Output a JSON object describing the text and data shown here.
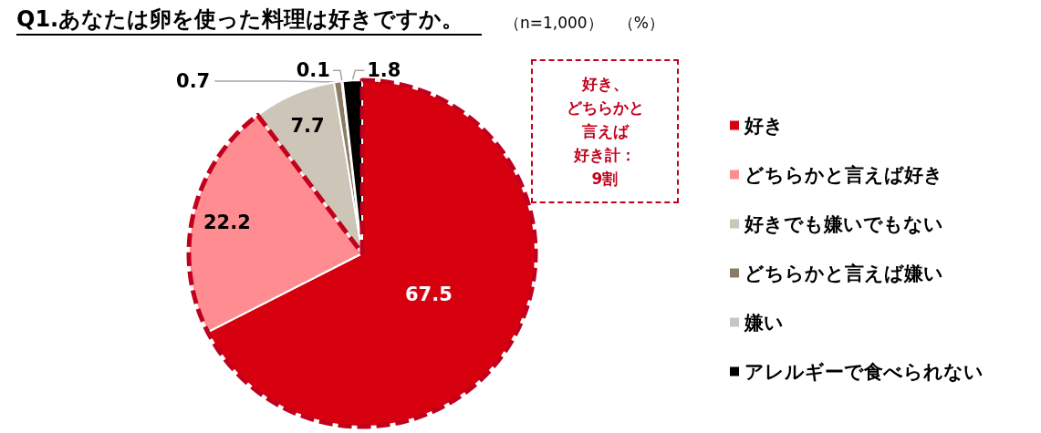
{
  "chart_data": {
    "type": "pie",
    "title": "Q1.あなたは卵を使った料理は好きですか。",
    "subtitle": "（n=1,000）　（%）",
    "annotations": [
      "好き、どちらかと言えば好き計：9割"
    ],
    "categories": [
      "好き",
      "どちらかと言えば好き",
      "好きでも嫌いでもない",
      "どちらかと言えば嫌い",
      "嫌い",
      "アレルギーで食べられない"
    ],
    "values": [
      67.5,
      22.2,
      7.7,
      0.7,
      0.1,
      1.8
    ],
    "colors": [
      "#d7000f",
      "#ff8c91",
      "#ccc5b8",
      "#8b7c65",
      "#c6c6c6",
      "#000000"
    ],
    "data_labels": true,
    "legend": "right"
  }
}
